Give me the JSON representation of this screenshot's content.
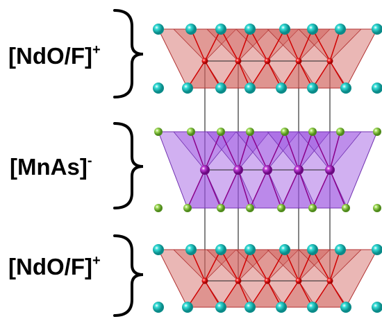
{
  "layers": [
    {
      "label": "[NdO/F]",
      "charge": "+"
    },
    {
      "label": "[MnAs]",
      "charge": "-"
    },
    {
      "label": "[NdO/F]",
      "charge": "+"
    }
  ]
}
